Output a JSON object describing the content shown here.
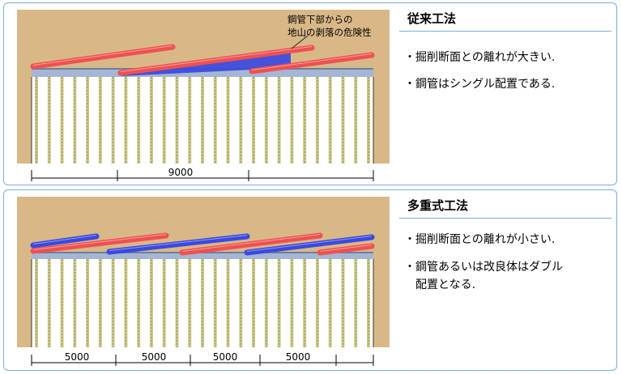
{
  "top": {
    "title": "従来工法",
    "bullets": [
      "掘削断面との離れが大きい.",
      "鋼管はシングル配置である."
    ],
    "annotation_line1": "鋼管下部からの",
    "annotation_line2": "地山の剥落の危険性",
    "dimensions": [
      "9000"
    ]
  },
  "bottom": {
    "title": "多重式工法",
    "bullets": [
      "掘削断面との離れが小さい.",
      "鋼管あるいは改良体はダブル",
      "配置となる."
    ],
    "dimensions": [
      "5000",
      "5000",
      "5000",
      "5000"
    ]
  },
  "colors": {
    "ground": "#d9b887",
    "red_pipe": "#f05050",
    "blue_pipe": "#3a49e0",
    "panel_border": "#7aaed6",
    "column": "#cbc98a",
    "deck": "#a4b6d4"
  }
}
